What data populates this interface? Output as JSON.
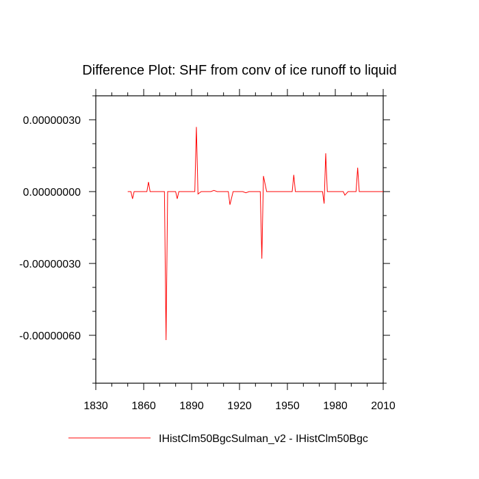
{
  "chart_data": {
    "type": "line",
    "title": "Difference Plot: SHF from conv of ice runoff to liquid",
    "xlabel": "",
    "ylabel": "",
    "xlim": [
      1830,
      2010
    ],
    "ylim": [
      -8e-07,
      4e-07
    ],
    "x_ticks": [
      1830,
      1860,
      1890,
      1920,
      1950,
      1980,
      2010
    ],
    "x_tick_labels": [
      "1830",
      "1860",
      "1890",
      "1920",
      "1950",
      "1980",
      "2010"
    ],
    "y_ticks": [
      3e-07,
      0.0,
      -3e-07,
      -6e-07
    ],
    "y_tick_labels": [
      "0.00000030",
      "0.00000000",
      "-0.00000030",
      "-0.00000060"
    ],
    "grid": false,
    "legend_position": "bottom",
    "series": [
      {
        "name": "IHistClm50BgcSulman_v2 - IHistClm50Bgc",
        "color": "#ff0000",
        "x": [
          1850,
          1852,
          1853,
          1854,
          1856,
          1860,
          1862,
          1863,
          1864,
          1866,
          1870,
          1872,
          1873,
          1874,
          1875,
          1878,
          1880,
          1881,
          1882,
          1884,
          1888,
          1891,
          1892,
          1893,
          1894,
          1896,
          1900,
          1902,
          1904,
          1906,
          1910,
          1912,
          1913,
          1914,
          1916,
          1920,
          1922,
          1924,
          1926,
          1930,
          1932,
          1933,
          1934,
          1935,
          1937,
          1940,
          1945,
          1950,
          1952,
          1953,
          1954,
          1955,
          1957,
          1960,
          1963,
          1966,
          1968,
          1971,
          1972,
          1973,
          1974,
          1975,
          1977,
          1980,
          1983,
          1985,
          1986,
          1988,
          1990,
          1992,
          1993,
          1994,
          1995,
          1997,
          2000,
          2005,
          2010
        ],
        "values": [
          0.0,
          0.0,
          -3e-08,
          0.0,
          0.0,
          0.0,
          0.0,
          4e-08,
          0.0,
          0.0,
          0.0,
          0.0,
          0.0,
          -6.2e-07,
          0.0,
          0.0,
          0.0,
          -3e-08,
          0.0,
          0.0,
          0.0,
          0.0,
          0.0,
          2.7e-07,
          -1e-08,
          0.0,
          0.0,
          0.0,
          5e-09,
          0.0,
          0.0,
          0.0,
          0.0,
          -5.5e-08,
          0.0,
          0.0,
          0.0,
          -5e-09,
          0.0,
          0.0,
          0.0,
          0.0,
          -2.8e-07,
          6.5e-08,
          0.0,
          0.0,
          0.0,
          0.0,
          0.0,
          0.0,
          7e-08,
          0.0,
          0.0,
          0.0,
          0.0,
          0.0,
          0.0,
          0.0,
          0.0,
          -5e-08,
          1.6e-07,
          0.0,
          0.0,
          0.0,
          0.0,
          0.0,
          -1.5e-08,
          0.0,
          0.0,
          0.0,
          0.0,
          1e-07,
          0.0,
          0.0,
          0.0,
          0.0,
          0.0
        ]
      }
    ]
  }
}
